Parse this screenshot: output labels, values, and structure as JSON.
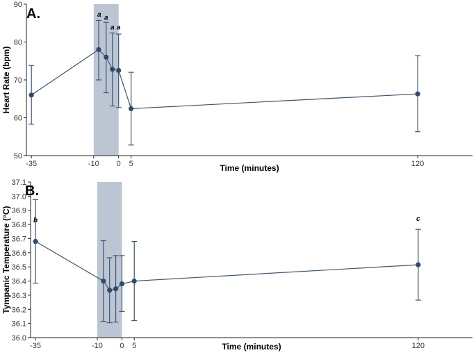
{
  "chart_data": [
    {
      "type": "line",
      "panel_label": "A.",
      "xlabel": "Time (minutes)",
      "ylabel": "Heart Rate (bpm)",
      "xlim": [
        -37,
        142
      ],
      "ylim": [
        50,
        90
      ],
      "xticks": [
        -35,
        -10,
        0,
        5,
        120
      ],
      "yticks": [
        50,
        60,
        70,
        80,
        90
      ],
      "shaded_region": [
        -10,
        0
      ],
      "series": [
        {
          "x": [
            -35,
            -8,
            -5,
            -2.5,
            0,
            5,
            120
          ],
          "y": [
            66.0,
            78.0,
            76.0,
            72.8,
            72.5,
            62.4,
            66.3
          ],
          "error_low": [
            58.3,
            70.0,
            66.6,
            63.1,
            62.7,
            52.8,
            56.3
          ],
          "error_high": [
            73.8,
            85.7,
            85.2,
            82.4,
            82.1,
            72.0,
            76.4
          ]
        }
      ],
      "annotations": [
        {
          "text": "a",
          "x": -7.8,
          "y": 87.4
        },
        {
          "text": "a",
          "x": -5.0,
          "y": 86.6
        },
        {
          "text": "a",
          "x": -2.5,
          "y": 84.0
        },
        {
          "text": "a",
          "x": 0.0,
          "y": 84.0
        }
      ],
      "grid": false
    },
    {
      "type": "line",
      "panel_label": "B.",
      "xlabel": "Time (minutes)",
      "ylabel": "Tympanic Temperature (°C)",
      "xlim": [
        -37,
        142
      ],
      "ylim": [
        36.0,
        37.1
      ],
      "xticks": [
        -35,
        -10,
        0,
        5,
        120
      ],
      "yticks": [
        36.0,
        36.1,
        36.2,
        36.3,
        36.4,
        36.5,
        36.6,
        36.7,
        36.8,
        36.9,
        37.0,
        37.1
      ],
      "shaded_region": [
        -10,
        0
      ],
      "series": [
        {
          "x": [
            -35,
            -7.5,
            -5,
            -2.5,
            0,
            5,
            120
          ],
          "y": [
            36.68,
            36.4,
            36.335,
            36.345,
            36.38,
            36.4,
            36.515
          ],
          "error_low": [
            36.385,
            36.115,
            36.105,
            36.11,
            36.185,
            36.12,
            36.265
          ],
          "error_high": [
            36.975,
            36.685,
            36.565,
            36.58,
            36.58,
            36.68,
            36.765
          ]
        }
      ],
      "annotations": [
        {
          "text": "b",
          "x": -35,
          "y": 36.835
        },
        {
          "text": "c",
          "x": 120,
          "y": 36.845
        }
      ],
      "grid": false
    }
  ],
  "colors": {
    "series": "#3b5577",
    "marker": "#2f4a6b",
    "shade": "#bcc5d2",
    "axis": "#222222"
  }
}
